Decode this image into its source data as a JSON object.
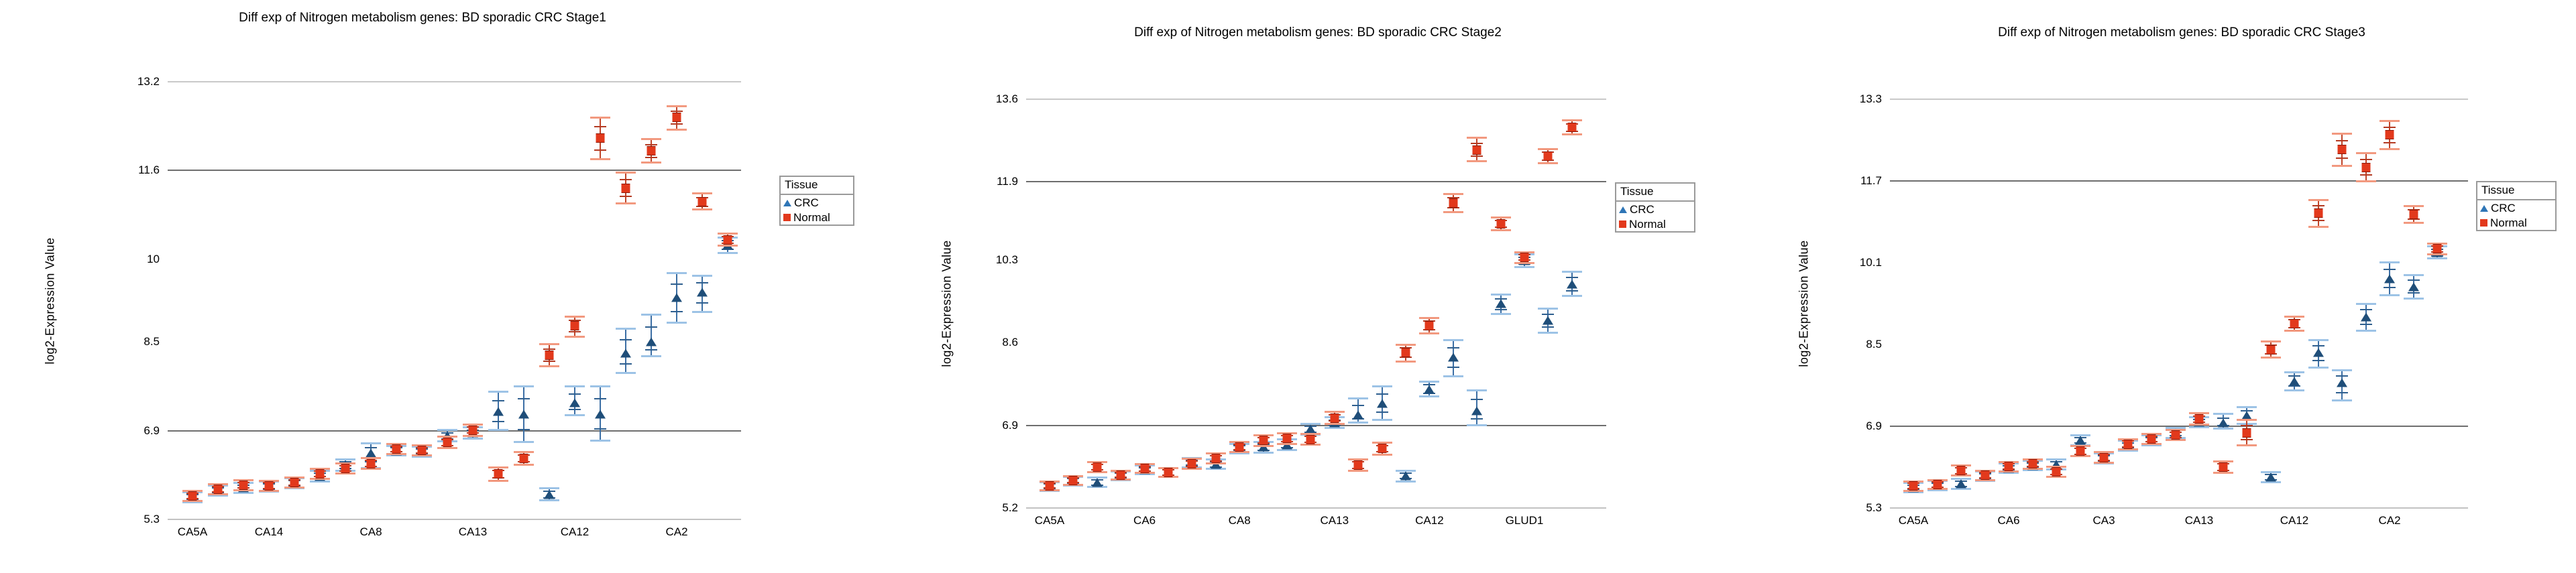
{
  "figure": {
    "legend_title": "Tissue",
    "series": [
      {
        "name": "CRC",
        "marker": "triangle"
      },
      {
        "name": "Normal",
        "marker": "square"
      }
    ]
  },
  "colors": {
    "crc_marker": "#1f4e79",
    "crc_legend_marker": "#2e75b6",
    "crc_errorbar_line": "#3c6fa5",
    "crc_cap_light": "#9dc3e6",
    "crc_cap_dark": "#2e5f8f",
    "normal_marker": "#e2391c",
    "normal_marker_edge": "#8d1a0b",
    "normal_errorbar_line": "#c0452a",
    "normal_cap_light": "#f2997f",
    "normal_cap_dark": "#b43a22",
    "grid_light": "#c9c9c9",
    "grid_dark": "#6e6e6e",
    "text": "#000000"
  },
  "chart_data": [
    {
      "type": "scatter",
      "title": "Diff exp of Nitrogen metabolism genes: BD sporadic CRC Stage1",
      "ylabel": "log2-Expression Value",
      "y_range": [
        5.3,
        13.2
      ],
      "y_ticks": [
        {
          "label": "13.2",
          "value": 13.2,
          "grid": "light"
        },
        {
          "label": "11.6",
          "value": 11.6,
          "grid": "dark"
        },
        {
          "label": "10",
          "value": 10.0,
          "grid": "none"
        },
        {
          "label": "8.5",
          "value": 8.5,
          "grid": "none"
        },
        {
          "label": "6.9",
          "value": 6.9,
          "grid": "dark"
        },
        {
          "label": "5.3",
          "value": 5.3,
          "grid": "axis"
        }
      ],
      "x_labels": [
        {
          "text": "CA5A",
          "index": 0
        },
        {
          "text": "CA14",
          "index": 3
        },
        {
          "text": "CA8",
          "index": 7
        },
        {
          "text": "CA13",
          "index": 11
        },
        {
          "text": "CA12",
          "index": 15
        },
        {
          "text": "CA2",
          "index": 19
        }
      ],
      "points": [
        {
          "c": [
            5.7,
            5.61,
            5.79
          ],
          "n": [
            5.72,
            5.63,
            5.81
          ]
        },
        {
          "c": [
            5.82,
            5.73,
            5.91
          ],
          "n": [
            5.84,
            5.75,
            5.93
          ]
        },
        {
          "c": [
            5.87,
            5.78,
            5.96
          ],
          "n": [
            5.92,
            5.83,
            6.01
          ]
        },
        {
          "c": [
            5.89,
            5.8,
            5.98
          ],
          "n": [
            5.91,
            5.82,
            6.0
          ]
        },
        {
          "c": [
            5.95,
            5.86,
            6.04
          ],
          "n": [
            5.97,
            5.88,
            6.06
          ]
        },
        {
          "c": [
            6.08,
            5.98,
            6.18
          ],
          "n": [
            6.12,
            6.03,
            6.21
          ]
        },
        {
          "c": [
            6.28,
            6.18,
            6.38
          ],
          "n": [
            6.22,
            6.13,
            6.31
          ]
        },
        {
          "c": [
            6.5,
            6.22,
            6.67
          ],
          "n": [
            6.31,
            6.21,
            6.41
          ]
        },
        {
          "c": [
            6.54,
            6.45,
            6.63
          ],
          "n": [
            6.57,
            6.48,
            6.66
          ]
        },
        {
          "c": [
            6.52,
            6.43,
            6.61
          ],
          "n": [
            6.55,
            6.46,
            6.64
          ]
        },
        {
          "c": [
            6.81,
            6.71,
            6.91
          ],
          "n": [
            6.69,
            6.59,
            6.79
          ]
        },
        {
          "c": [
            6.86,
            6.76,
            6.96
          ],
          "n": [
            6.91,
            6.81,
            7.01
          ]
        },
        {
          "c": [
            7.25,
            6.92,
            7.6
          ],
          "n": [
            6.12,
            6.0,
            6.24
          ]
        },
        {
          "c": [
            7.2,
            6.7,
            7.7
          ],
          "n": [
            6.4,
            6.29,
            6.51
          ]
        },
        {
          "c": [
            5.75,
            5.64,
            5.86
          ],
          "n": [
            8.27,
            8.06,
            8.46
          ]
        },
        {
          "c": [
            7.4,
            7.18,
            7.7
          ],
          "n": [
            8.8,
            8.6,
            8.96
          ]
        },
        {
          "c": [
            7.2,
            6.72,
            7.7
          ],
          "n": [
            12.18,
            11.8,
            12.55
          ]
        },
        {
          "c": [
            8.3,
            7.94,
            8.74
          ],
          "n": [
            11.28,
            11.0,
            11.56
          ]
        },
        {
          "c": [
            8.5,
            8.24,
            9.0
          ],
          "n": [
            11.95,
            11.74,
            12.16
          ]
        },
        {
          "c": [
            9.3,
            8.85,
            9.74
          ],
          "n": [
            12.56,
            12.34,
            12.76
          ]
        },
        {
          "c": [
            9.4,
            9.05,
            9.7
          ],
          "n": [
            11.03,
            10.89,
            11.18
          ]
        },
        {
          "c": [
            10.25,
            10.11,
            10.39
          ],
          "n": [
            10.35,
            10.24,
            10.46
          ]
        }
      ]
    },
    {
      "type": "scatter",
      "title": "Diff exp of Nitrogen metabolism genes: BD sporadic CRC Stage2",
      "ylabel": "log2-Expression Value",
      "y_range": [
        5.2,
        13.6
      ],
      "y_ticks": [
        {
          "label": "13.6",
          "value": 13.6,
          "grid": "light"
        },
        {
          "label": "11.9",
          "value": 11.9,
          "grid": "dark"
        },
        {
          "label": "10.3",
          "value": 10.3,
          "grid": "none"
        },
        {
          "label": "8.6",
          "value": 8.6,
          "grid": "none"
        },
        {
          "label": "6.9",
          "value": 6.9,
          "grid": "dark"
        },
        {
          "label": "5.2",
          "value": 5.2,
          "grid": "axis"
        }
      ],
      "x_labels": [
        {
          "text": "CA5A",
          "index": 0
        },
        {
          "text": "CA6",
          "index": 4
        },
        {
          "text": "CA8",
          "index": 8
        },
        {
          "text": "CA13",
          "index": 12
        },
        {
          "text": "CA12",
          "index": 16
        },
        {
          "text": "GLUD1",
          "index": 20
        }
      ],
      "points": [
        {
          "c": [
            5.64,
            5.55,
            5.73
          ],
          "n": [
            5.66,
            5.57,
            5.75
          ]
        },
        {
          "c": [
            5.75,
            5.66,
            5.84
          ],
          "n": [
            5.77,
            5.68,
            5.86
          ]
        },
        {
          "c": [
            5.73,
            5.63,
            5.83
          ],
          "n": [
            6.04,
            5.93,
            6.15
          ]
        },
        {
          "c": [
            5.86,
            5.77,
            5.95
          ],
          "n": [
            5.88,
            5.79,
            5.97
          ]
        },
        {
          "c": [
            5.98,
            5.89,
            6.07
          ],
          "n": [
            6.01,
            5.92,
            6.1
          ]
        },
        {
          "c": [
            5.93,
            5.84,
            6.02
          ],
          "n": [
            5.93,
            5.84,
            6.02
          ]
        },
        {
          "c": [
            6.13,
            6.03,
            6.23
          ],
          "n": [
            6.11,
            6.01,
            6.21
          ]
        },
        {
          "c": [
            6.1,
            6.0,
            6.2
          ],
          "n": [
            6.22,
            6.12,
            6.32
          ]
        },
        {
          "c": [
            6.42,
            6.32,
            6.52
          ],
          "n": [
            6.45,
            6.35,
            6.55
          ]
        },
        {
          "c": [
            6.45,
            6.34,
            6.56
          ],
          "n": [
            6.59,
            6.48,
            6.7
          ]
        },
        {
          "c": [
            6.5,
            6.39,
            6.61
          ],
          "n": [
            6.63,
            6.52,
            6.74
          ]
        },
        {
          "c": [
            6.82,
            6.71,
            6.93
          ],
          "n": [
            6.61,
            6.5,
            6.72
          ]
        },
        {
          "c": [
            6.95,
            6.84,
            7.06
          ],
          "n": [
            7.05,
            6.93,
            7.17
          ]
        },
        {
          "c": [
            7.12,
            6.95,
            7.45
          ],
          "n": [
            6.08,
            5.96,
            6.2
          ]
        },
        {
          "c": [
            7.35,
            7.01,
            7.7
          ],
          "n": [
            6.42,
            6.3,
            6.54
          ]
        },
        {
          "c": [
            5.86,
            5.75,
            5.97
          ],
          "n": [
            8.4,
            8.21,
            8.56
          ]
        },
        {
          "c": [
            7.64,
            7.49,
            7.8
          ],
          "n": [
            8.95,
            8.79,
            9.11
          ]
        },
        {
          "c": [
            8.3,
            7.91,
            8.65
          ],
          "n": [
            11.47,
            11.28,
            11.65
          ]
        },
        {
          "c": [
            7.2,
            6.9,
            7.61
          ],
          "n": [
            12.55,
            12.33,
            12.81
          ]
        },
        {
          "c": [
            9.4,
            9.18,
            9.58
          ],
          "n": [
            11.04,
            10.91,
            11.17
          ]
        },
        {
          "c": [
            10.28,
            10.15,
            10.41
          ],
          "n": [
            10.35,
            10.24,
            10.46
          ]
        },
        {
          "c": [
            9.05,
            8.8,
            9.29
          ],
          "n": [
            12.43,
            12.29,
            12.57
          ]
        },
        {
          "c": [
            9.8,
            9.56,
            10.06
          ],
          "n": [
            13.02,
            12.88,
            13.16
          ]
        }
      ]
    },
    {
      "type": "scatter",
      "title": "Diff exp of Nitrogen metabolism genes: BD sporadic CRC Stage3",
      "ylabel": "log2-Expression Value",
      "y_range": [
        5.3,
        13.3
      ],
      "y_ticks": [
        {
          "label": "13.3",
          "value": 13.3,
          "grid": "light"
        },
        {
          "label": "11.7",
          "value": 11.7,
          "grid": "dark"
        },
        {
          "label": "10.1",
          "value": 10.1,
          "grid": "none"
        },
        {
          "label": "8.5",
          "value": 8.5,
          "grid": "none"
        },
        {
          "label": "6.9",
          "value": 6.9,
          "grid": "dark"
        },
        {
          "label": "5.3",
          "value": 5.3,
          "grid": "axis"
        }
      ],
      "x_labels": [
        {
          "text": "CA5A",
          "index": 0
        },
        {
          "text": "CA6",
          "index": 4
        },
        {
          "text": "CA3",
          "index": 8
        },
        {
          "text": "CA13",
          "index": 12
        },
        {
          "text": "CA12",
          "index": 16
        },
        {
          "text": "CA2",
          "index": 20
        }
      ],
      "points": [
        {
          "c": [
            5.7,
            5.61,
            5.79
          ],
          "n": [
            5.73,
            5.64,
            5.82
          ]
        },
        {
          "c": [
            5.74,
            5.65,
            5.83
          ],
          "n": [
            5.76,
            5.67,
            5.85
          ]
        },
        {
          "c": [
            5.77,
            5.67,
            5.87
          ],
          "n": [
            6.03,
            5.93,
            6.13
          ]
        },
        {
          "c": [
            5.92,
            5.83,
            6.01
          ],
          "n": [
            5.94,
            5.85,
            6.03
          ]
        },
        {
          "c": [
            6.08,
            5.99,
            6.17
          ],
          "n": [
            6.11,
            6.02,
            6.2
          ]
        },
        {
          "c": [
            6.13,
            6.04,
            6.22
          ],
          "n": [
            6.16,
            6.07,
            6.25
          ]
        },
        {
          "c": [
            6.15,
            6.05,
            6.25
          ],
          "n": [
            6.01,
            5.91,
            6.11
          ]
        },
        {
          "c": [
            6.63,
            6.53,
            6.72
          ],
          "n": [
            6.41,
            6.31,
            6.51
          ]
        },
        {
          "c": [
            6.27,
            6.17,
            6.37
          ],
          "n": [
            6.29,
            6.19,
            6.39
          ]
        },
        {
          "c": [
            6.52,
            6.42,
            6.62
          ],
          "n": [
            6.55,
            6.45,
            6.65
          ]
        },
        {
          "c": [
            6.62,
            6.52,
            6.72
          ],
          "n": [
            6.65,
            6.55,
            6.75
          ]
        },
        {
          "c": [
            6.77,
            6.67,
            6.87
          ],
          "n": [
            6.73,
            6.63,
            6.83
          ]
        },
        {
          "c": [
            6.98,
            6.88,
            7.08
          ],
          "n": [
            7.04,
            6.93,
            7.15
          ]
        },
        {
          "c": [
            6.97,
            6.86,
            7.14
          ],
          "n": [
            6.1,
            5.99,
            6.21
          ]
        },
        {
          "c": [
            7.11,
            6.95,
            7.27
          ],
          "n": [
            6.77,
            6.52,
            7.02
          ]
        },
        {
          "c": [
            5.9,
            5.8,
            6.0
          ],
          "n": [
            8.4,
            8.24,
            8.56
          ]
        },
        {
          "c": [
            7.78,
            7.6,
            7.96
          ],
          "n": [
            8.91,
            8.77,
            9.05
          ]
        },
        {
          "c": [
            8.34,
            8.05,
            8.59
          ],
          "n": [
            11.07,
            10.8,
            11.33
          ]
        },
        {
          "c": [
            7.75,
            7.4,
            7.99
          ],
          "n": [
            12.31,
            12.0,
            12.62
          ]
        },
        {
          "c": [
            9.04,
            8.77,
            9.29
          ],
          "n": [
            11.96,
            11.7,
            12.25
          ]
        },
        {
          "c": [
            9.79,
            9.47,
            10.11
          ],
          "n": [
            12.6,
            12.32,
            12.87
          ]
        },
        {
          "c": [
            9.63,
            9.4,
            9.86
          ],
          "n": [
            11.04,
            10.88,
            11.21
          ]
        },
        {
          "c": [
            10.3,
            10.18,
            10.42
          ],
          "n": [
            10.37,
            10.26,
            10.48
          ]
        }
      ]
    }
  ]
}
